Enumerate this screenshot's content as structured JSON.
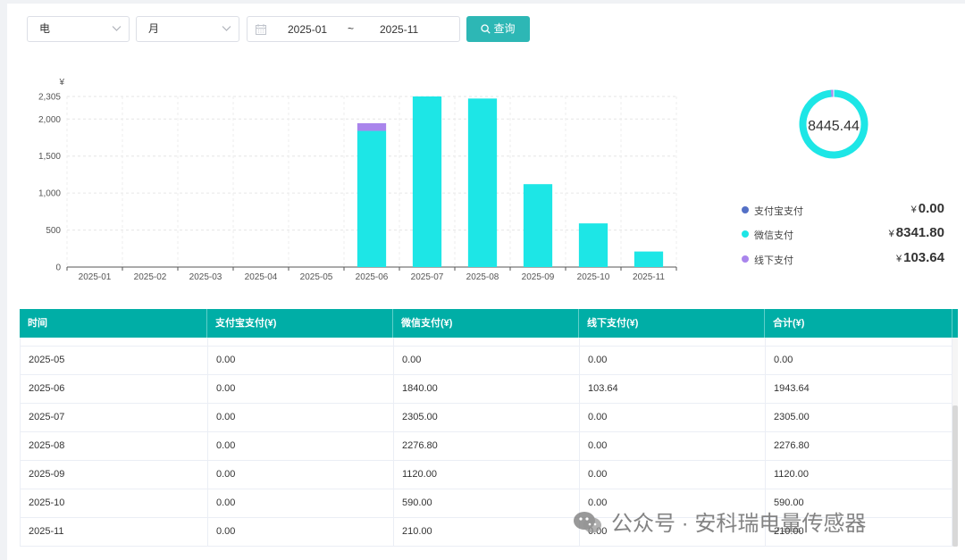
{
  "filters": {
    "category": "电",
    "period": "月",
    "date_start": "2025-01",
    "date_sep": "~",
    "date_end": "2025-11",
    "query_label": "查询"
  },
  "chart_data": {
    "type": "bar",
    "stacked": true,
    "unit_label": "¥",
    "categories": [
      "2025-01",
      "2025-02",
      "2025-03",
      "2025-04",
      "2025-05",
      "2025-06",
      "2025-07",
      "2025-08",
      "2025-09",
      "2025-10",
      "2025-11"
    ],
    "series": [
      {
        "name": "支付宝支付",
        "color": "#5470c6",
        "values": [
          0,
          0,
          0,
          0,
          0,
          0,
          0,
          0,
          0,
          0,
          0
        ]
      },
      {
        "name": "微信支付",
        "color": "#1de6e6",
        "values": [
          0,
          0,
          0,
          0,
          0,
          1840,
          2305,
          2276.8,
          1120,
          590,
          210
        ]
      },
      {
        "name": "线下支付",
        "color": "#a985ec",
        "values": [
          0,
          0,
          0,
          0,
          0,
          103.64,
          0,
          0,
          0,
          0,
          0
        ]
      }
    ],
    "y_ticks": [
      0,
      500,
      1000,
      1500,
      2000,
      2305
    ],
    "ylim": [
      0,
      2305
    ],
    "grid": true
  },
  "summary": {
    "total": "8445.44",
    "currency": "¥",
    "items": [
      {
        "name": "支付宝支付",
        "value": "0.00",
        "color": "#5470c6"
      },
      {
        "name": "微信支付",
        "value": "8341.80",
        "color": "#1de6e6"
      },
      {
        "name": "线下支付",
        "value": "103.64",
        "color": "#a985ec"
      }
    ]
  },
  "table": {
    "headers": [
      "时间",
      "支付宝支付(¥)",
      "微信支付(¥)",
      "线下支付(¥)",
      "合计(¥)"
    ],
    "rows": [
      [
        "2025-05",
        "0.00",
        "0.00",
        "0.00",
        "0.00"
      ],
      [
        "2025-06",
        "0.00",
        "1840.00",
        "103.64",
        "1943.64"
      ],
      [
        "2025-07",
        "0.00",
        "2305.00",
        "0.00",
        "2305.00"
      ],
      [
        "2025-08",
        "0.00",
        "2276.80",
        "0.00",
        "2276.80"
      ],
      [
        "2025-09",
        "0.00",
        "1120.00",
        "0.00",
        "1120.00"
      ],
      [
        "2025-10",
        "0.00",
        "590.00",
        "0.00",
        "590.00"
      ],
      [
        "2025-11",
        "0.00",
        "210.00",
        "0.00",
        "210.00"
      ]
    ]
  },
  "watermark": "公众号 · 安科瑞电量传感器"
}
